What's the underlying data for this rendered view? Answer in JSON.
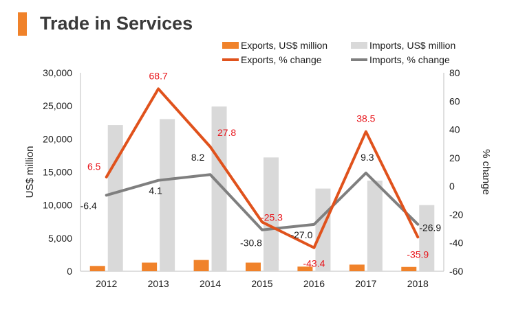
{
  "chart_data": {
    "type": "bar-line-combo",
    "title": "Trade in Services",
    "categories": [
      "2012",
      "2013",
      "2014",
      "2015",
      "2016",
      "2017",
      "2018"
    ],
    "ylabel_left": "US$ million",
    "ylabel_right": "% change",
    "ylim_left": [
      0,
      30000
    ],
    "yticks_left": [
      "0",
      "5,000",
      "10,000",
      "15,000",
      "20,000",
      "25,000",
      "30,000"
    ],
    "ylim_right": [
      -60,
      80
    ],
    "yticks_right": [
      "-60",
      "-40",
      "-20",
      "0",
      "20",
      "40",
      "60",
      "80"
    ],
    "bar_series": [
      {
        "name": "Exports, US$ million",
        "color": "#f0822a",
        "values": [
          800,
          1300,
          1700,
          1300,
          700,
          1000,
          650
        ]
      },
      {
        "name": "Imports, US$ million",
        "color": "#d9d9d9",
        "values": [
          22100,
          23000,
          24900,
          17200,
          12500,
          13700,
          10000
        ]
      }
    ],
    "line_series": [
      {
        "name": "Exports, % change",
        "color": "#e0521c",
        "label_color": "#e8141a",
        "values": [
          6.5,
          68.7,
          27.8,
          -25.3,
          -43.4,
          38.5,
          -35.9
        ],
        "labels": [
          "6.5",
          "68.7",
          "27.8",
          "-25.3",
          "-43.4",
          "38.5",
          "-35.9"
        ]
      },
      {
        "name": "Imports, % change",
        "color": "#7f7f7f",
        "label_color": "#1a1a1a",
        "values": [
          -6.4,
          4.1,
          8.2,
          -30.8,
          -27.0,
          9.3,
          -26.9
        ],
        "labels": [
          "-6.4",
          "4.1",
          "8.2",
          "-30.8",
          "-27.0",
          "9.3",
          "-26.9"
        ]
      }
    ],
    "legend": [
      "Exports, US$ million",
      "Imports, US$ million",
      "Exports, % change",
      "Imports, % change"
    ]
  }
}
